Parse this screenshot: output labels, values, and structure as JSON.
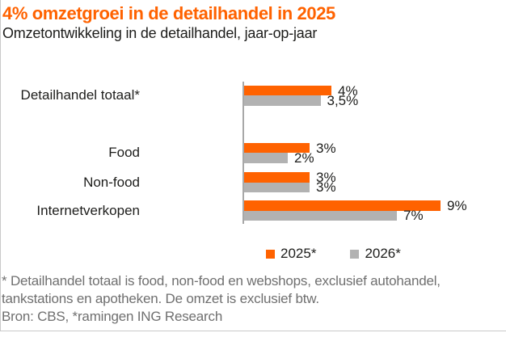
{
  "header": {
    "title": "4% omzetgroei in de detailhandel in 2025",
    "subtitle": "Omzetontwikkeling in de detailhandel, jaar-op-jaar"
  },
  "chart_data": {
    "type": "bar",
    "orientation": "horizontal",
    "title": "4% omzetgroei in de detailhandel in 2025",
    "subtitle": "Omzetontwikkeling in de detailhandel, jaar-op-jaar",
    "categories": [
      "Detailhandel totaal*",
      "Food",
      "Non-food",
      "Internetverkopen"
    ],
    "series": [
      {
        "name": "2025*",
        "color": "#ff6200",
        "values": [
          4,
          3,
          3,
          9
        ],
        "value_labels": [
          "4%",
          "3%",
          "3%",
          "9%"
        ]
      },
      {
        "name": "2026*",
        "color": "#b2b2b2",
        "values": [
          3.5,
          2,
          3,
          7
        ],
        "value_labels": [
          "3,5%",
          "2%",
          "3%",
          "7%"
        ]
      }
    ],
    "unit": "%",
    "xlim": [
      0,
      9
    ],
    "grid": false,
    "legend_position": "bottom"
  },
  "footer": {
    "note": "* Detailhandel totaal is food, non-food en webshops, exclusief autohandel, tankstations en apotheken. De omzet is exclusief btw.",
    "source": "Bron: CBS, *ramingen ING Research"
  },
  "colors": {
    "accent_orange": "#ff6200",
    "series_gray": "#b2b2b2",
    "axis_gray": "#a8a8a8",
    "text_dark": "#1d1d1b",
    "footnote_gray": "#6f6f6f",
    "border_gray": "#c9c9c9"
  }
}
